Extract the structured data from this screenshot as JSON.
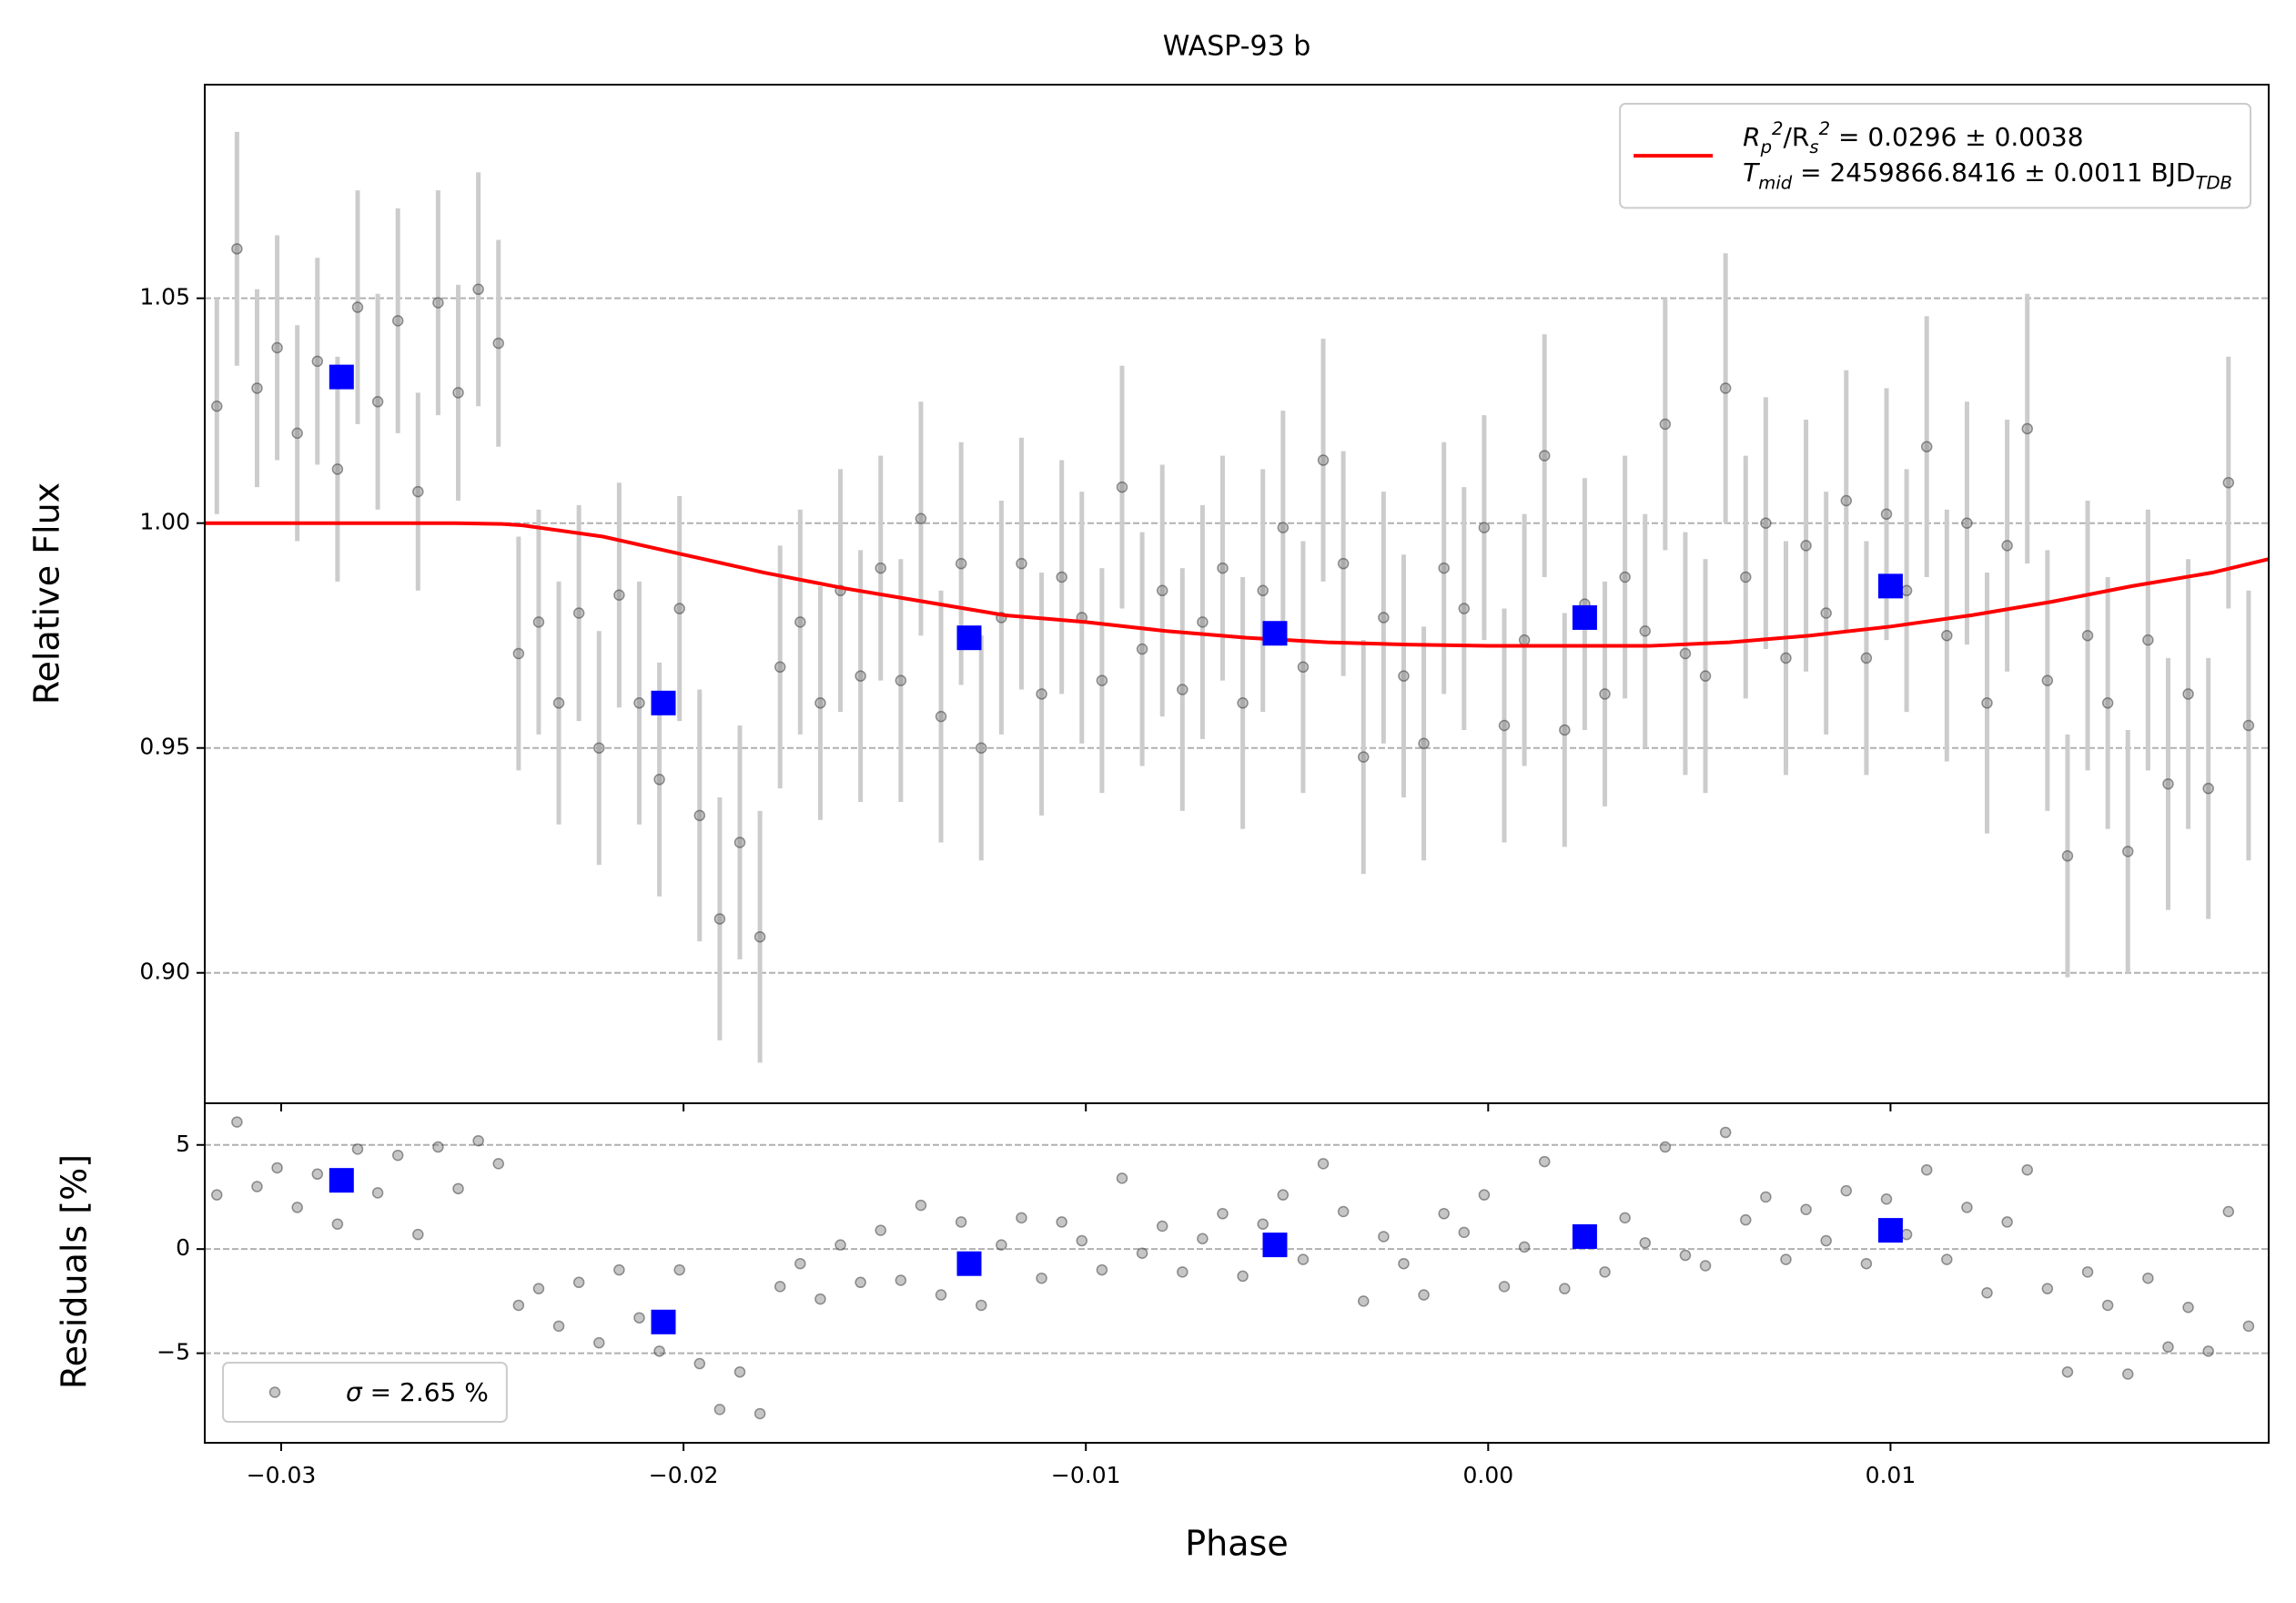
{
  "chart_data": [
    {
      "type": "scatter",
      "title": "WASP-93 b",
      "ylabel": "Relative Flux",
      "xlim": [
        -0.0319,
        0.0194
      ],
      "ylim": [
        0.871,
        1.0975
      ],
      "yticks": [
        {
          "value": 0.9,
          "label": "0.90"
        },
        {
          "value": 0.95,
          "label": "0.95"
        },
        {
          "value": 1.0,
          "label": "1.00"
        },
        {
          "value": 1.05,
          "label": "1.05"
        }
      ],
      "grid": true,
      "legend": "upper right",
      "series": [
        {
          "type": "errorbar",
          "color": "#808080",
          "error_color": "#cccccc",
          "x": [
            -0.0316,
            -0.0311,
            -0.0306,
            -0.0301,
            -0.0296,
            -0.0291,
            -0.0286,
            -0.0281,
            -0.0276,
            -0.0271,
            -0.0266,
            -0.0261,
            -0.0256,
            -0.0251,
            -0.0246,
            -0.0241,
            -0.0236,
            -0.0231,
            -0.0226,
            -0.0221,
            -0.0216,
            -0.0211,
            -0.0206,
            -0.0201,
            -0.0196,
            -0.0191,
            -0.0186,
            -0.0181,
            -0.0176,
            -0.0171,
            -0.0166,
            -0.0161,
            -0.0156,
            -0.0151,
            -0.0146,
            -0.0141,
            -0.0136,
            -0.0131,
            -0.0126,
            -0.0121,
            -0.0116,
            -0.0111,
            -0.0106,
            -0.0101,
            -0.0096,
            -0.0091,
            -0.0086,
            -0.0081,
            -0.0076,
            -0.0071,
            -0.0066,
            -0.0061,
            -0.0056,
            -0.0051,
            -0.0046,
            -0.0041,
            -0.0036,
            -0.0031,
            -0.0026,
            -0.0021,
            -0.0016,
            -0.0011,
            -0.0006,
            -0.0001,
            0.0004,
            0.0009,
            0.0014,
            0.0019,
            0.0024,
            0.0029,
            0.0034,
            0.0039,
            0.0044,
            0.0049,
            0.0054,
            0.0059,
            0.0064,
            0.0069,
            0.0074,
            0.0079,
            0.0084,
            0.0089,
            0.0094,
            0.0099,
            0.0104,
            0.0109,
            0.0114,
            0.0119,
            0.0124,
            0.0129,
            0.0134,
            0.0139,
            0.0144,
            0.0149,
            0.0154,
            0.0159,
            0.0164,
            0.0169,
            0.0174,
            0.0179,
            0.0184,
            0.0189
          ],
          "values": [
            1.026,
            1.061,
            1.03,
            1.039,
            1.02,
            1.036,
            1.012,
            1.048,
            1.027,
            1.045,
            1.007,
            1.049,
            1.029,
            1.052,
            1.04,
            0.971,
            0.978,
            0.96,
            0.98,
            0.95,
            0.984,
            0.96,
            0.943,
            0.981,
            0.935,
            0.912,
            0.929,
            0.908,
            0.968,
            0.978,
            0.96,
            0.985,
            0.966,
            0.99,
            0.965,
            1.001,
            0.957,
            0.991,
            0.95,
            0.979,
            0.991,
            0.962,
            0.988,
            0.979,
            0.965,
            1.008,
            0.972,
            0.985,
            0.963,
            0.978,
            0.99,
            0.96,
            0.985,
            0.999,
            0.968,
            1.014,
            0.991,
            0.948,
            0.979,
            0.966,
            0.951,
            0.99,
            0.981,
            0.999,
            0.955,
            0.974,
            1.015,
            0.954,
            0.982,
            0.962,
            0.988,
            0.976,
            1.022,
            0.971,
            0.966,
            1.03,
            0.988,
            1.0,
            0.97,
            0.995,
            0.98,
            1.005,
            0.97,
            1.002,
            0.985,
            1.017,
            0.975,
            1.0,
            0.96,
            0.995,
            1.021,
            0.965,
            0.926,
            0.975,
            0.96,
            0.927,
            0.974,
            0.942,
            0.962,
            0.941,
            1.009,
            0.955
          ],
          "errors": [
            0.024,
            0.026,
            0.022,
            0.025,
            0.024,
            0.023,
            0.025,
            0.026,
            0.024,
            0.025,
            0.022,
            0.025,
            0.024,
            0.026,
            0.023,
            0.026,
            0.025,
            0.027,
            0.024,
            0.026,
            0.025,
            0.027,
            0.026,
            0.025,
            0.028,
            0.027,
            0.026,
            0.028,
            0.027,
            0.025,
            0.026,
            0.027,
            0.028,
            0.025,
            0.027,
            0.026,
            0.028,
            0.027,
            0.025,
            0.026,
            0.028,
            0.027,
            0.026,
            0.028,
            0.025,
            0.027,
            0.026,
            0.028,
            0.027,
            0.026,
            0.025,
            0.028,
            0.027,
            0.026,
            0.028,
            0.027,
            0.025,
            0.026,
            0.028,
            0.027,
            0.026,
            0.028,
            0.027,
            0.025,
            0.026,
            0.028,
            0.027,
            0.026,
            0.028,
            0.025,
            0.027,
            0.026,
            0.028,
            0.027,
            0.026,
            0.03,
            0.027,
            0.028,
            0.026,
            0.028,
            0.027,
            0.029,
            0.026,
            0.028,
            0.027,
            0.029,
            0.028,
            0.027,
            0.029,
            0.028,
            0.03,
            0.029,
            0.027,
            0.03,
            0.028,
            0.027,
            0.029,
            0.028,
            0.03,
            0.029,
            0.028,
            0.03
          ]
        },
        {
          "type": "line",
          "color": "#ff0000",
          "name": "R_{p}^{2}/R_{s}^{2} = 0.0296 ± 0.0038\nT_{mid} = 2459866.8416 ± 0.0011 BJD_{TDB}",
          "x": [
            -0.0319,
            -0.0257,
            -0.0245,
            -0.024,
            -0.022,
            -0.02,
            -0.018,
            -0.016,
            -0.014,
            -0.012,
            -0.01,
            -0.008,
            -0.006,
            -0.004,
            -0.002,
            0,
            0.002,
            0.004,
            0.006,
            0.008,
            0.01,
            0.012,
            0.014,
            0.016,
            0.018,
            0.0194
          ],
          "values": [
            1,
            1,
            0.9998,
            0.9995,
            0.997,
            0.993,
            0.989,
            0.9855,
            0.9825,
            0.9795,
            0.978,
            0.976,
            0.9745,
            0.9735,
            0.973,
            0.9727,
            0.9727,
            0.9727,
            0.9735,
            0.975,
            0.977,
            0.9795,
            0.9825,
            0.986,
            0.989,
            0.992
          ]
        },
        {
          "type": "scatter",
          "marker": "s",
          "color": "#0000ff",
          "x": [
            -0.0285,
            -0.0205,
            -0.0129,
            -0.0053,
            0.0024,
            0.01
          ],
          "values": [
            1.0325,
            0.96,
            0.9745,
            0.9755,
            0.979,
            0.986
          ]
        }
      ]
    },
    {
      "type": "scatter",
      "xlabel": "Phase",
      "ylabel": "Residuals [%]",
      "xlim": [
        -0.0319,
        0.0194
      ],
      "ylim": [
        -9.3,
        7.0
      ],
      "xticks": [
        {
          "value": -0.03,
          "label": "−0.03"
        },
        {
          "value": -0.02,
          "label": "−0.02"
        },
        {
          "value": -0.01,
          "label": "−0.01"
        },
        {
          "value": 0,
          "label": "0.00"
        },
        {
          "value": 0.01,
          "label": "0.01"
        }
      ],
      "yticks": [
        {
          "value": -5,
          "label": "−5"
        },
        0,
        5
      ],
      "grid": true,
      "legend": "lower left",
      "series": [
        {
          "type": "scatter",
          "marker": "o",
          "color": "#808080",
          "name": "σ = 2.65 %",
          "x": [
            -0.0316,
            -0.0311,
            -0.0306,
            -0.0301,
            -0.0296,
            -0.0291,
            -0.0286,
            -0.0281,
            -0.0276,
            -0.0271,
            -0.0266,
            -0.0261,
            -0.0256,
            -0.0251,
            -0.0246,
            -0.0241,
            -0.0236,
            -0.0231,
            -0.0226,
            -0.0221,
            -0.0216,
            -0.0211,
            -0.0206,
            -0.0201,
            -0.0196,
            -0.0191,
            -0.0186,
            -0.0181,
            -0.0176,
            -0.0171,
            -0.0166,
            -0.0161,
            -0.0156,
            -0.0151,
            -0.0146,
            -0.0141,
            -0.0136,
            -0.0131,
            -0.0126,
            -0.0121,
            -0.0116,
            -0.0111,
            -0.0106,
            -0.0101,
            -0.0096,
            -0.0091,
            -0.0086,
            -0.0081,
            -0.0076,
            -0.0071,
            -0.0066,
            -0.0061,
            -0.0056,
            -0.0051,
            -0.0046,
            -0.0041,
            -0.0036,
            -0.0031,
            -0.0026,
            -0.0021,
            -0.0016,
            -0.0011,
            -0.0006,
            -0.0001,
            0.0004,
            0.0009,
            0.0014,
            0.0019,
            0.0024,
            0.0029,
            0.0034,
            0.0039,
            0.0044,
            0.0049,
            0.0054,
            0.0059,
            0.0064,
            0.0069,
            0.0074,
            0.0079,
            0.0084,
            0.0089,
            0.0094,
            0.0099,
            0.0104,
            0.0109,
            0.0114,
            0.0119,
            0.0124,
            0.0129,
            0.0134,
            0.0139,
            0.0144,
            0.0149,
            0.0154,
            0.0159,
            0.0164,
            0.0169,
            0.0174,
            0.0179,
            0.0184,
            0.0189
          ],
          "values": [
            2.6,
            6.1,
            3.0,
            3.9,
            2.0,
            3.6,
            1.2,
            4.8,
            2.7,
            4.5,
            0.7,
            4.9,
            2.9,
            5.2,
            4.1,
            -2.7,
            -1.9,
            -3.7,
            -1.6,
            -4.5,
            -1.0,
            -3.3,
            -4.9,
            -1.0,
            -5.5,
            -7.7,
            -5.9,
            -7.9,
            -1.8,
            -0.7,
            -2.4,
            0.2,
            -1.6,
            0.9,
            -1.5,
            2.1,
            -2.2,
            1.3,
            -2.7,
            0.2,
            1.5,
            -1.4,
            1.3,
            0.4,
            -1.0,
            3.4,
            -0.2,
            1.1,
            -1.1,
            0.5,
            1.7,
            -1.3,
            1.2,
            2.6,
            -0.5,
            4.1,
            1.8,
            -2.5,
            0.6,
            -0.7,
            -2.2,
            1.7,
            0.8,
            2.6,
            -1.8,
            0.1,
            4.2,
            -1.9,
            0.9,
            -1.1,
            1.5,
            0.3,
            4.9,
            -0.3,
            -0.8,
            5.6,
            1.4,
            2.5,
            -0.5,
            1.9,
            0.4,
            2.8,
            -0.7,
            2.4,
            0.7,
            3.8,
            -0.5,
            2.0,
            -2.1,
            1.3,
            3.8,
            -1.9,
            -5.9,
            -1.1,
            -2.7,
            -6.0,
            -1.4,
            -4.7,
            -2.8,
            -4.9,
            1.8,
            -3.7
          ]
        },
        {
          "type": "scatter",
          "marker": "s",
          "color": "#0000ff",
          "x": [
            -0.0285,
            -0.0205,
            -0.0129,
            -0.0053,
            0.0024,
            0.01
          ],
          "values": [
            3.3,
            -3.5,
            -0.7,
            0.2,
            0.6,
            0.9
          ]
        }
      ]
    }
  ]
}
